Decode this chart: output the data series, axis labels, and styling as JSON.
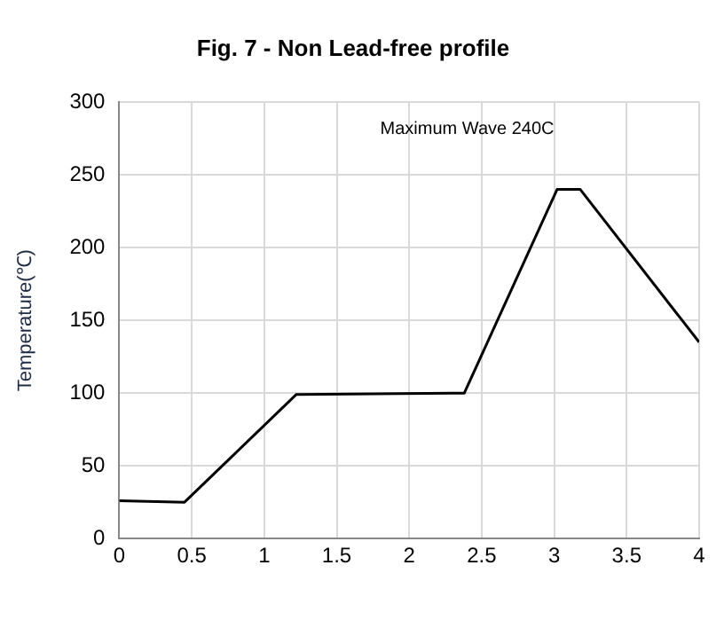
{
  "chart_data": {
    "type": "line",
    "title": "Fig. 7 - Non Lead-free profile",
    "ylabel": "Temperature(℃)",
    "annotations": [
      "Maximum Wave 240C"
    ],
    "x": [
      0,
      0.45,
      1.22,
      2.38,
      3.02,
      3.18,
      4
    ],
    "series": [
      {
        "color": "#000000",
        "values": [
          26,
          25,
          99,
          100,
          240,
          240,
          135
        ]
      }
    ],
    "xlim": [
      0,
      4
    ],
    "xticks": [
      0,
      0.5,
      1,
      1.5,
      2,
      2.5,
      3,
      3.5,
      4
    ],
    "ylim": [
      0,
      300
    ],
    "yticks": [
      0,
      50,
      100,
      150,
      200,
      250,
      300
    ],
    "grid": true,
    "legend": false,
    "marker": "none",
    "line_style": "solid"
  }
}
